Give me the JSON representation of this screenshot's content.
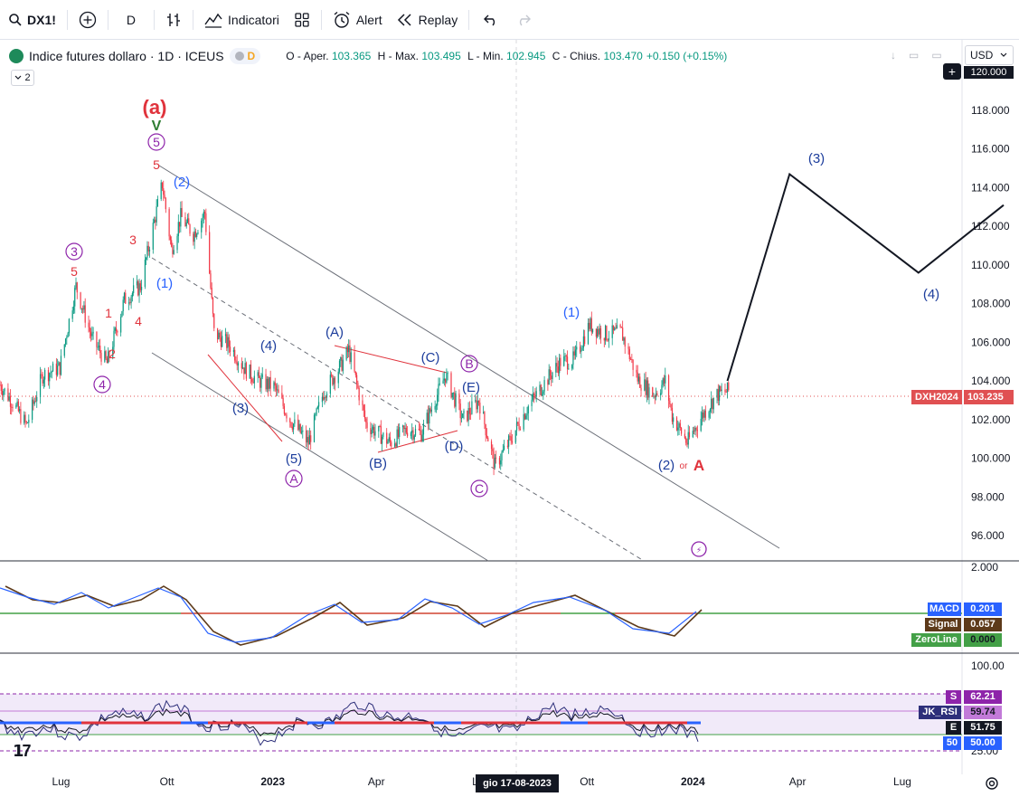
{
  "toolbar": {
    "symbol": "DX1!",
    "interval": "D",
    "indicators_label": "Indicatori",
    "alert_label": "Alert",
    "replay_label": "Replay"
  },
  "legend": {
    "title": "Indice futures dollaro · 1D · ICEUS",
    "badge": "D",
    "collapse_count": "2",
    "ohlc": [
      {
        "key": "O",
        "label": "Aper.",
        "value": "103.365"
      },
      {
        "key": "H",
        "label": "Max.",
        "value": "103.495"
      },
      {
        "key": "L",
        "label": "Min.",
        "value": "102.945"
      },
      {
        "key": "C",
        "label": "Chius.",
        "value": "103.470"
      }
    ],
    "change": "+0.150 (+0.15%)"
  },
  "currency": "USD",
  "top_price_tag": "120.000",
  "price_tag": {
    "symbol": "DXH2024",
    "value": "103.235",
    "color": "#e05052"
  },
  "date_tooltip": "gio 17-08-2023",
  "colors": {
    "up": "#089981",
    "down": "#f23645",
    "wave_blue": "#2962ff",
    "wave_navy": "#1c3d9c",
    "wave_red": "#e0333c",
    "wave_purple": "#8e24aa",
    "wave_green": "#2e7d32",
    "macd": "#2962ff",
    "signal": "#5d3a1a",
    "rsi_band": "#e7dcf5"
  },
  "chart_data": [
    {
      "type": "line",
      "pane": "price",
      "y_ticks": [
        "118.000",
        "116.000",
        "114.000",
        "112.000",
        "110.000",
        "108.000",
        "106.000",
        "104.000",
        "102.000",
        "100.000",
        "98.000",
        "96.000"
      ],
      "ylim": [
        94.7,
        120.5
      ],
      "x_ticks": [
        "Lug",
        "Ott",
        "2023",
        "Apr",
        "Lug",
        "Ott",
        "2024",
        "Apr",
        "Lug"
      ],
      "x_tick_dates": [
        "2022-07-01",
        "2022-10-01",
        "2023-01-01",
        "2023-04-01",
        "2023-07-01",
        "2023-10-01",
        "2024-01-01",
        "2024-04-01",
        "2024-07-01"
      ],
      "xlim": [
        "2022-05-09",
        "2024-09-27"
      ],
      "series": [
        {
          "values": [
            [
              "2022-05-09",
              103.8
            ],
            [
              "2022-05-20",
              102.9
            ],
            [
              "2022-06-01",
              101.7
            ],
            [
              "2022-06-15",
              104.3
            ],
            [
              "2022-06-30",
              104.7
            ],
            [
              "2022-07-14",
              108.9
            ],
            [
              "2022-07-28",
              106.2
            ],
            [
              "2022-08-10",
              104.9
            ],
            [
              "2022-08-25",
              108.2
            ],
            [
              "2022-09-08",
              108.9
            ],
            [
              "2022-09-27",
              114.2
            ],
            [
              "2022-10-05",
              110.8
            ],
            [
              "2022-10-13",
              112.5
            ],
            [
              "2022-10-24",
              111.6
            ],
            [
              "2022-11-03",
              112.7
            ],
            [
              "2022-11-11",
              106.5
            ],
            [
              "2022-11-25",
              105.8
            ],
            [
              "2022-12-08",
              104.6
            ],
            [
              "2022-12-20",
              104.0
            ],
            [
              "2023-01-02",
              103.7
            ],
            [
              "2023-01-16",
              102.0
            ],
            [
              "2023-02-01",
              100.8
            ],
            [
              "2023-02-14",
              103.4
            ],
            [
              "2023-03-01",
              104.8
            ],
            [
              "2023-03-08",
              105.6
            ],
            [
              "2023-03-23",
              101.8
            ],
            [
              "2023-04-13",
              100.8
            ],
            [
              "2023-04-28",
              101.5
            ],
            [
              "2023-05-10",
              101.3
            ],
            [
              "2023-05-31",
              104.3
            ],
            [
              "2023-06-15",
              102.0
            ],
            [
              "2023-06-29",
              103.0
            ],
            [
              "2023-07-13",
              99.6
            ],
            [
              "2023-07-26",
              100.9
            ],
            [
              "2023-08-10",
              102.6
            ],
            [
              "2023-08-25",
              103.9
            ],
            [
              "2023-09-08",
              105.0
            ],
            [
              "2023-09-20",
              105.1
            ],
            [
              "2023-10-03",
              106.9
            ],
            [
              "2023-10-18",
              106.4
            ],
            [
              "2023-10-31",
              106.5
            ],
            [
              "2023-11-14",
              104.1
            ],
            [
              "2023-11-28",
              103.3
            ],
            [
              "2023-12-08",
              104.0
            ],
            [
              "2023-12-14",
              102.2
            ],
            [
              "2023-12-27",
              100.8
            ],
            [
              "2024-01-10",
              102.3
            ],
            [
              "2024-01-22",
              103.3
            ],
            [
              "2024-02-01",
              103.5
            ]
          ]
        }
      ],
      "annotations": [
        "(a)",
        "V",
        "5",
        "5",
        "(2)",
        "(1)",
        "3",
        "5",
        "1",
        "2",
        "3",
        "4",
        "4",
        "(3)",
        "(4)",
        "(5)",
        "A",
        "(A)",
        "(B)",
        "(C)",
        "(D)",
        "(E)",
        "B",
        "C",
        "(1)",
        "(2)",
        "or",
        "A",
        "(3)",
        "(4)"
      ],
      "projection": [
        [
          "2024-01-31",
          104.0
        ],
        [
          "2024-03-25",
          114.7
        ],
        [
          "2024-07-15",
          109.6
        ],
        [
          "2024-09-27",
          113.1
        ]
      ]
    },
    {
      "type": "line",
      "pane": "macd",
      "y_ticks": [
        "2.000"
      ],
      "legend": [
        {
          "name": "MACD",
          "value": "0.201"
        },
        {
          "name": "Signal",
          "value": "0.057"
        },
        {
          "name": "ZeroLine",
          "value": "0.000"
        }
      ]
    },
    {
      "type": "line",
      "pane": "rsi",
      "y_ticks": [
        "100.00",
        "25.00"
      ],
      "levels": [
        62.21,
        50.0,
        25.0
      ],
      "legend": [
        {
          "name": "S",
          "value": "62.21"
        },
        {
          "name": "JK_RSI",
          "value": "59.74"
        },
        {
          "name": "E",
          "value": "51.75"
        },
        {
          "name": "50",
          "value": "50.00"
        }
      ]
    }
  ]
}
